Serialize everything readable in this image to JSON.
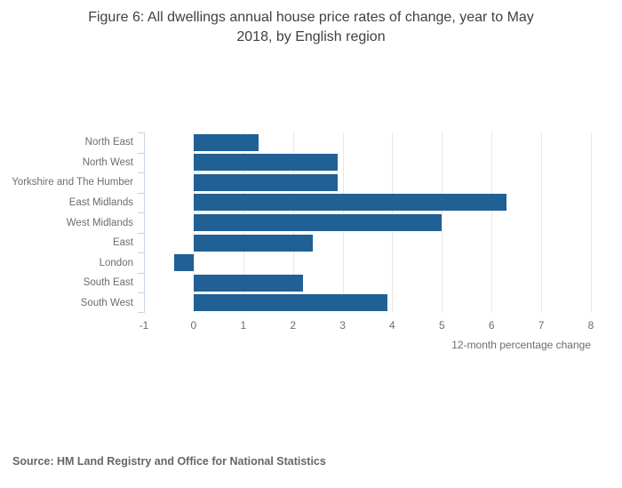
{
  "chart_data": {
    "type": "bar",
    "orientation": "horizontal",
    "title": "Figure 6: All dwellings annual house price rates of change, year to May\n2018, by English region",
    "categories": [
      "North East",
      "North West",
      "Yorkshire and The Humber",
      "East Midlands",
      "West Midlands",
      "East",
      "London",
      "South East",
      "South West"
    ],
    "values": [
      1.3,
      2.9,
      2.9,
      6.3,
      5.0,
      2.4,
      -0.4,
      2.2,
      3.9
    ],
    "xlabel": "12-month percentage change",
    "ylabel": "",
    "xlim": [
      -1,
      8
    ],
    "xticks": [
      -1,
      0,
      1,
      2,
      3,
      4,
      5,
      6,
      7,
      8
    ],
    "grid": true,
    "legend_position": "none",
    "colors": {
      "bar": "#206095",
      "axis_line": "#c9d5e4",
      "gridline": "#e7e7e7",
      "title_text": "#414042",
      "tick_text": "#6d6d6d",
      "source_text": "#666666"
    }
  },
  "footer": {
    "source": "Source: HM Land Registry and Office for National Statistics"
  }
}
